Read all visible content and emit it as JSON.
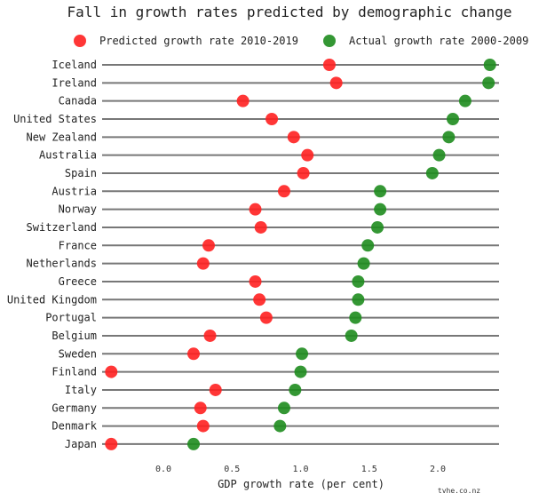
{
  "chart_data": {
    "type": "scatter",
    "title": "Fall in growth rates predicted by demographic change",
    "xlabel": "GDP growth rate (per cent)",
    "ylabel": "",
    "credit": "tvhe.co.nz",
    "xlim": [
      -0.45,
      2.45
    ],
    "xticks": [
      "0.0",
      "0.5",
      "1.0",
      "1.5",
      "2.0"
    ],
    "xtick_values": [
      0.0,
      0.5,
      1.0,
      1.5,
      2.0
    ],
    "legend_position": "top",
    "grid": "horizontal lines per category",
    "categories": [
      "Iceland",
      "Ireland",
      "Canada",
      "United States",
      "New Zealand",
      "Australia",
      "Spain",
      "Austria",
      "Norway",
      "Switzerland",
      "France",
      "Netherlands",
      "Greece",
      "United Kingdom",
      "Portugal",
      "Belgium",
      "Sweden",
      "Finland",
      "Italy",
      "Germany",
      "Denmark",
      "Japan"
    ],
    "series": [
      {
        "name": "Predicted growth rate 2010-2019",
        "color": "#ff2020",
        "values": [
          1.21,
          1.26,
          0.58,
          0.79,
          0.95,
          1.05,
          1.02,
          0.88,
          0.67,
          0.71,
          0.33,
          0.29,
          0.67,
          0.7,
          0.75,
          0.34,
          0.22,
          -0.38,
          0.38,
          0.27,
          0.29,
          -0.38
        ]
      },
      {
        "name": "Actual growth rate 2000-2009",
        "color": "#1e8c1e",
        "values": [
          2.38,
          2.37,
          2.2,
          2.11,
          2.08,
          2.01,
          1.96,
          1.58,
          1.58,
          1.56,
          1.49,
          1.46,
          1.42,
          1.42,
          1.4,
          1.37,
          1.01,
          1.0,
          0.96,
          0.88,
          0.85,
          0.22
        ]
      }
    ]
  }
}
